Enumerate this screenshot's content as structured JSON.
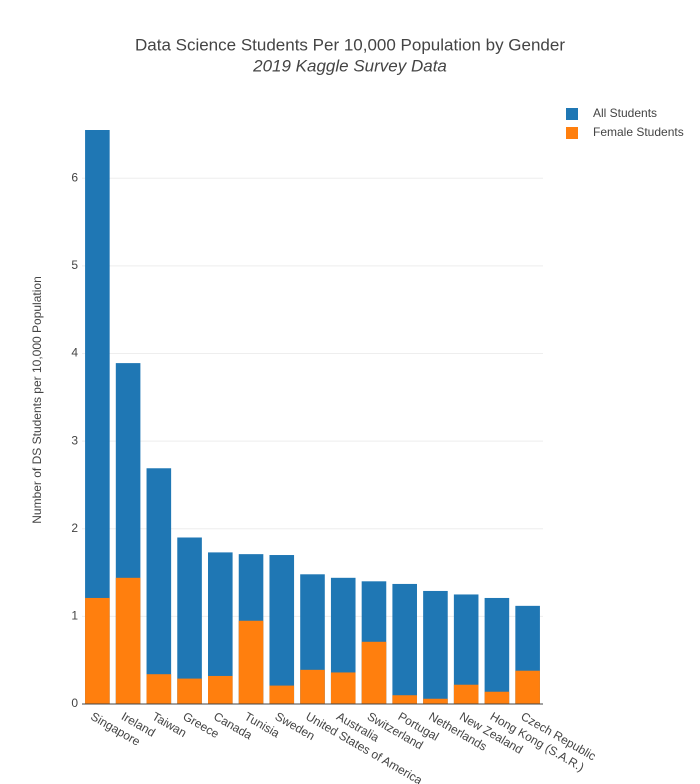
{
  "chart_data": {
    "type": "bar",
    "barmode": "overlay",
    "title": "Data Science Students Per 10,000 Population by Gender",
    "subtitle": "2019 Kaggle Survey Data",
    "y_label": "Number of DS Students per 10,000 Population",
    "categories": [
      "Singapore",
      "Ireland",
      "Taiwan",
      "Greece",
      "Canada",
      "Tunisia",
      "Sweden",
      "United States of America",
      "Australia",
      "Switzerland",
      "Portugal",
      "Netherlands",
      "New Zealand",
      "Hong Kong (S.A.R.)",
      "Czech Republic"
    ],
    "series": [
      {
        "name": "All Students",
        "color": "#1f77b4",
        "values": [
          6.55,
          3.89,
          2.69,
          1.9,
          1.73,
          1.71,
          1.7,
          1.48,
          1.44,
          1.4,
          1.37,
          1.29,
          1.25,
          1.21,
          1.12
        ]
      },
      {
        "name": "Female Students",
        "color": "#ff7f0e",
        "values": [
          1.21,
          1.44,
          0.34,
          0.29,
          0.32,
          0.95,
          0.21,
          0.39,
          0.36,
          0.71,
          0.1,
          0.06,
          0.22,
          0.14,
          0.38
        ]
      }
    ],
    "ylim": [
      0,
      6.55
    ],
    "yticks": [
      0,
      1,
      2,
      3,
      4,
      5,
      6
    ],
    "grid": true,
    "legend": "top-right"
  }
}
